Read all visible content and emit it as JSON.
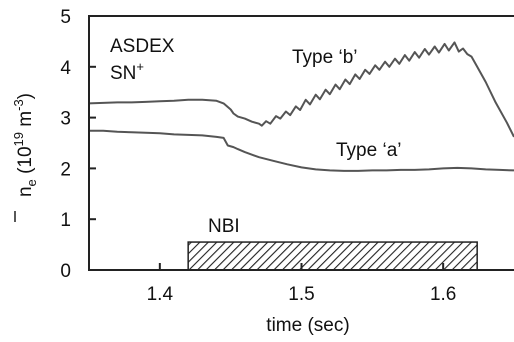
{
  "chart_data": {
    "type": "line",
    "xlabel": "time (sec)",
    "ylabel": {
      "main": "n",
      "sub": "e",
      "unit_open": " (10",
      "unit_exp": "19",
      "unit_mid": " m",
      "unit_exp2": "-3",
      "unit_close": ")"
    },
    "xlim": [
      1.35,
      1.65
    ],
    "ylim": [
      0,
      5
    ],
    "xticks": [
      {
        "value": 1.4,
        "label": "1.4"
      },
      {
        "value": 1.5,
        "label": "1.5"
      },
      {
        "value": 1.6,
        "label": "1.6"
      }
    ],
    "yticks": [
      {
        "value": 0,
        "label": "0"
      },
      {
        "value": 1,
        "label": "1"
      },
      {
        "value": 2,
        "label": "2"
      },
      {
        "value": 3,
        "label": "3"
      },
      {
        "value": 4,
        "label": "4"
      },
      {
        "value": 5,
        "label": "5"
      }
    ],
    "grid": false,
    "annotations": {
      "device_line1": "ASDEX",
      "device_line2_main": "SN",
      "device_line2_sup": "+",
      "type_b": "Type ‘b’",
      "type_a": "Type ‘a’",
      "nbi": "NBI"
    },
    "nbi_interval": {
      "start": 1.42,
      "end": 1.624,
      "height": 0.55
    },
    "series": [
      {
        "name": "Type ‘b’",
        "color": "#555555",
        "x": [
          1.35,
          1.36,
          1.37,
          1.38,
          1.39,
          1.4,
          1.41,
          1.42,
          1.43,
          1.44,
          1.445,
          1.45,
          1.452,
          1.455,
          1.46,
          1.465,
          1.47,
          1.472,
          1.475,
          1.478,
          1.482,
          1.485,
          1.489,
          1.492,
          1.496,
          1.499,
          1.503,
          1.506,
          1.51,
          1.513,
          1.517,
          1.52,
          1.524,
          1.527,
          1.531,
          1.534,
          1.538,
          1.541,
          1.545,
          1.548,
          1.552,
          1.555,
          1.559,
          1.562,
          1.566,
          1.569,
          1.573,
          1.576,
          1.58,
          1.583,
          1.587,
          1.59,
          1.594,
          1.597,
          1.601,
          1.604,
          1.608,
          1.611,
          1.614,
          1.617,
          1.62,
          1.623,
          1.63,
          1.637,
          1.645,
          1.65
        ],
        "y": [
          3.28,
          3.29,
          3.3,
          3.3,
          3.31,
          3.32,
          3.33,
          3.35,
          3.35,
          3.33,
          3.28,
          3.16,
          3.08,
          3.02,
          2.98,
          2.92,
          2.88,
          2.84,
          2.93,
          2.88,
          3.03,
          2.98,
          3.12,
          3.05,
          3.22,
          3.15,
          3.35,
          3.26,
          3.45,
          3.36,
          3.55,
          3.46,
          3.65,
          3.56,
          3.75,
          3.66,
          3.85,
          3.76,
          3.94,
          3.86,
          4.03,
          3.94,
          4.1,
          4.0,
          4.16,
          4.06,
          4.23,
          4.12,
          4.29,
          4.18,
          4.35,
          4.24,
          4.4,
          4.28,
          4.45,
          4.32,
          4.48,
          4.3,
          4.36,
          4.25,
          4.2,
          4.05,
          3.7,
          3.3,
          2.9,
          2.62
        ]
      },
      {
        "name": "Type ‘a’",
        "color": "#555555",
        "x": [
          1.35,
          1.36,
          1.37,
          1.38,
          1.39,
          1.4,
          1.41,
          1.42,
          1.43,
          1.44,
          1.445,
          1.448,
          1.452,
          1.455,
          1.46,
          1.47,
          1.48,
          1.49,
          1.5,
          1.51,
          1.52,
          1.53,
          1.54,
          1.55,
          1.56,
          1.57,
          1.58,
          1.59,
          1.6,
          1.61,
          1.62,
          1.63,
          1.64,
          1.65
        ],
        "y": [
          2.74,
          2.74,
          2.72,
          2.71,
          2.7,
          2.69,
          2.67,
          2.66,
          2.65,
          2.62,
          2.6,
          2.45,
          2.42,
          2.38,
          2.32,
          2.22,
          2.15,
          2.08,
          2.02,
          1.98,
          1.96,
          1.95,
          1.95,
          1.96,
          1.96,
          1.97,
          1.97,
          1.98,
          2.0,
          2.01,
          2.0,
          1.98,
          1.97,
          1.96
        ]
      }
    ]
  }
}
